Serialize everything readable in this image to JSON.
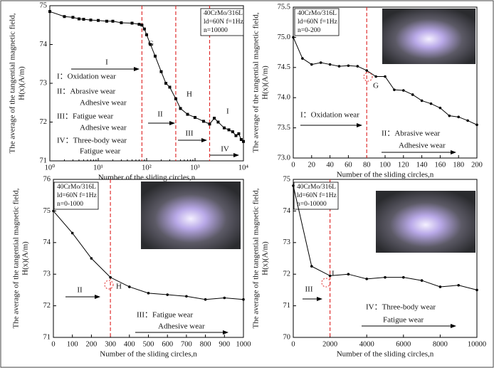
{
  "chart_data": [
    {
      "type": "line",
      "xscale": "log",
      "color": "#000000",
      "marker": "square",
      "xlabel": "Number of the sliding circles,n",
      "ylabel": [
        "The average of the tangential magnetic field,",
        "H(x)(A/m)"
      ],
      "x": [
        1,
        2,
        3,
        4,
        5,
        7,
        10,
        15,
        20,
        30,
        50,
        70,
        80,
        90,
        100,
        120,
        150,
        200,
        250,
        300,
        400,
        500,
        700,
        1000,
        1500,
        2000,
        2500,
        3000,
        4000,
        5000,
        6000,
        7000,
        8000,
        9000,
        10000
      ],
      "values": [
        74.85,
        74.72,
        74.7,
        74.66,
        74.65,
        74.63,
        74.62,
        74.6,
        74.6,
        74.56,
        74.55,
        74.52,
        74.5,
        74.4,
        74.25,
        74.0,
        73.7,
        73.3,
        73.0,
        72.9,
        72.6,
        72.35,
        72.2,
        72.12,
        72.02,
        71.95,
        72.1,
        72.0,
        71.85,
        71.8,
        71.75,
        71.65,
        71.7,
        71.55,
        71.5
      ],
      "xlim": [
        1,
        10000
      ],
      "xticks": [
        {
          "value": 1,
          "label": "10⁰"
        },
        {
          "value": 10,
          "label": "10¹"
        },
        {
          "value": 100,
          "label": "10²"
        },
        {
          "value": 1000,
          "label": "10³"
        },
        {
          "value": 10000,
          "label": "10⁴"
        }
      ],
      "ylim": [
        71,
        75
      ],
      "yticks": [
        71,
        72,
        73,
        74,
        75
      ],
      "vlines": [
        80,
        400,
        2000
      ],
      "legend_box": [
        "40CrMo/316L",
        "ld=60N f=1Hz",
        "n=10000"
      ],
      "annotations": [
        "G",
        "H",
        "I",
        "I",
        "I：Oxidation wear",
        "II：Abrasive wear",
        "Adhesive wear",
        "III：Fatigue wear",
        "Adhesive wear",
        "IV：Three-body wear",
        "Fatigue wear",
        "II",
        "III",
        "IV"
      ]
    },
    {
      "type": "line",
      "color": "#000000",
      "marker": "dot",
      "xlabel": "Number of the sliding circles,n",
      "ylabel": [
        "The average of the tangential magnetic field,",
        "H(x)(A/m)"
      ],
      "x": [
        0,
        10,
        20,
        30,
        40,
        50,
        60,
        70,
        80,
        90,
        100,
        110,
        120,
        130,
        140,
        150,
        160,
        170,
        180,
        190,
        200
      ],
      "values": [
        75.0,
        74.65,
        74.55,
        74.58,
        74.55,
        74.52,
        74.53,
        74.52,
        74.45,
        74.35,
        74.35,
        74.13,
        74.12,
        74.05,
        73.95,
        73.9,
        73.83,
        73.7,
        73.68,
        73.62,
        73.55
      ],
      "xlim": [
        0,
        200
      ],
      "xticks": [
        0,
        20,
        40,
        60,
        80,
        100,
        120,
        140,
        160,
        180,
        200
      ],
      "ylim": [
        73.0,
        75.5
      ],
      "yticks": [
        {
          "value": 73,
          "label": "73.0"
        },
        73.5,
        {
          "value": 74,
          "label": "74.0"
        },
        74.5,
        {
          "value": 75,
          "label": "75.0"
        },
        75.5
      ],
      "vlines": [
        80
      ],
      "legend_box": [
        "40CrMo/316L",
        "ld=60N f=1Hz",
        "n=0-200"
      ],
      "annotations": [
        "G",
        "I：Oxidation wear",
        "II：Abrasive wear",
        "Adhesive wear"
      ]
    },
    {
      "type": "line",
      "color": "#000000",
      "marker": "dot",
      "xlabel": "Number of the sliding circles,n",
      "ylabel": [
        "The average of the tangential magnetic field,",
        "H(x)(A/m)"
      ],
      "x": [
        0,
        100,
        200,
        300,
        400,
        500,
        600,
        700,
        800,
        900,
        1000
      ],
      "values": [
        75.0,
        74.3,
        73.5,
        72.9,
        72.6,
        72.4,
        72.35,
        72.3,
        72.2,
        72.25,
        72.2
      ],
      "xlim": [
        0,
        1000
      ],
      "xticks": [
        0,
        100,
        200,
        300,
        400,
        500,
        600,
        700,
        800,
        900,
        1000
      ],
      "ylim": [
        71,
        76
      ],
      "yticks": [
        71,
        72,
        73,
        74,
        75,
        76
      ],
      "vlines": [
        300
      ],
      "legend_box": [
        "40CrMo/316L",
        "ld=60N f=1Hz",
        "n=0-1000"
      ],
      "annotations": [
        "H",
        "II",
        "III：Fatigue wear",
        "Adhesive wear"
      ]
    },
    {
      "type": "line",
      "color": "#000000",
      "marker": "dot",
      "xlabel": "Number of the sliding circles,n",
      "ylabel": [
        "The average of the tangential magnetic field,",
        "H(x)(A/m)"
      ],
      "x": [
        0,
        1000,
        2000,
        3000,
        4000,
        5000,
        6000,
        7000,
        8000,
        9000,
        10000
      ],
      "values": [
        74.8,
        72.25,
        71.95,
        72.0,
        71.85,
        71.9,
        71.9,
        71.8,
        71.6,
        71.65,
        71.5
      ],
      "xlim": [
        0,
        10000
      ],
      "xticks": [
        0,
        2000,
        4000,
        6000,
        8000,
        10000
      ],
      "ylim": [
        70,
        75
      ],
      "yticks": [
        70,
        71,
        72,
        73,
        74,
        75
      ],
      "vlines": [
        2000
      ],
      "legend_box": [
        "40CrMo/316L",
        "ld=60N f=1Hz",
        "n=0-10000"
      ],
      "annotations": [
        "I",
        "III",
        "IV：Three-body wear",
        "Fatigue wear"
      ]
    }
  ]
}
